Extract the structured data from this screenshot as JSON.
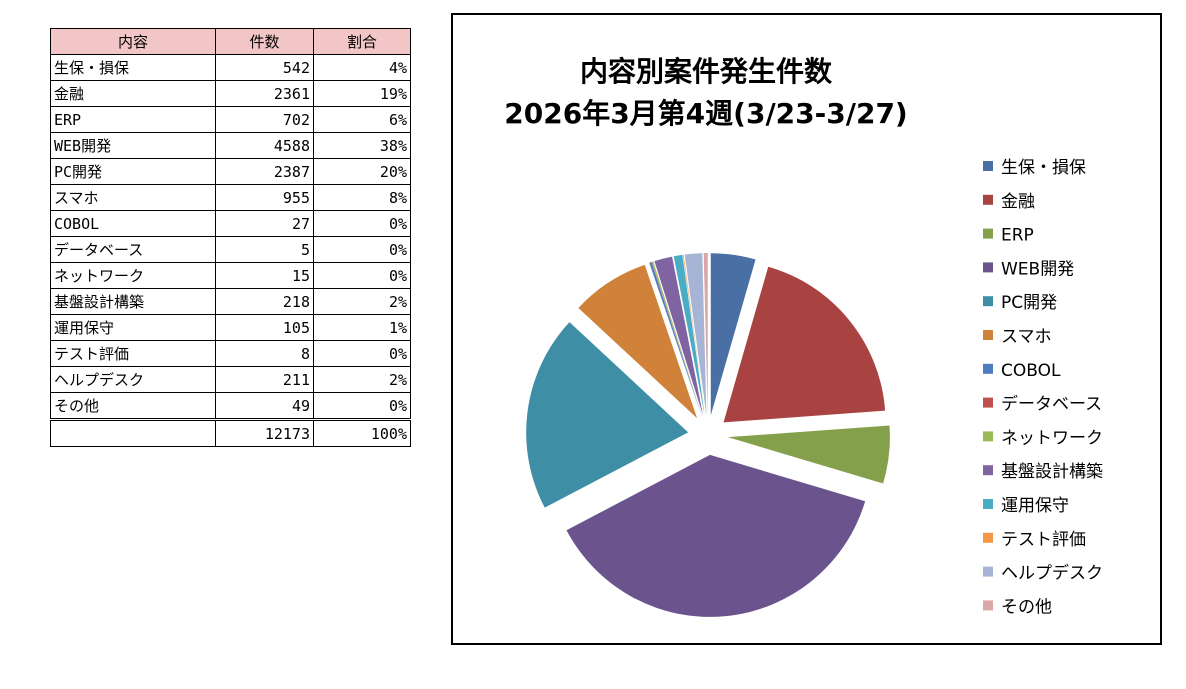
{
  "table": {
    "headers": [
      "内容",
      "件数",
      "割合"
    ],
    "rows": [
      {
        "name": "生保・損保",
        "count": "542",
        "pct": "4%"
      },
      {
        "name": "金融",
        "count": "2361",
        "pct": "19%"
      },
      {
        "name": "ERP",
        "count": "702",
        "pct": "6%"
      },
      {
        "name": "WEB開発",
        "count": "4588",
        "pct": "38%"
      },
      {
        "name": "PC開発",
        "count": "2387",
        "pct": "20%"
      },
      {
        "name": "スマホ",
        "count": "955",
        "pct": "8%"
      },
      {
        "name": "COBOL",
        "count": "27",
        "pct": "0%"
      },
      {
        "name": "データベース",
        "count": "5",
        "pct": "0%"
      },
      {
        "name": "ネットワーク",
        "count": "15",
        "pct": "0%"
      },
      {
        "name": "基盤設計構築",
        "count": "218",
        "pct": "2%"
      },
      {
        "name": "運用保守",
        "count": "105",
        "pct": "1%"
      },
      {
        "name": "テスト評価",
        "count": "8",
        "pct": "0%"
      },
      {
        "name": "ヘルプデスク",
        "count": "211",
        "pct": "2%"
      },
      {
        "name": "その他",
        "count": "49",
        "pct": "0%"
      }
    ],
    "total": {
      "name": "",
      "count": "12173",
      "pct": "100%"
    }
  },
  "chart_data": {
    "type": "pie",
    "title": "内容別案件発生件数",
    "subtitle": "2026年3月第4週(3/23-3/27)",
    "labels": [
      "生保・損保",
      "金融",
      "ERP",
      "WEB開発",
      "PC開発",
      "スマホ",
      "COBOL",
      "データベース",
      "ネットワーク",
      "基盤設計構築",
      "運用保守",
      "テスト評価",
      "ヘルプデスク",
      "その他"
    ],
    "values": [
      542,
      2361,
      702,
      4588,
      2387,
      955,
      27,
      5,
      15,
      218,
      105,
      8,
      211,
      49
    ],
    "colors": [
      "#4a6fa5",
      "#a94341",
      "#85a04b",
      "#6b548e",
      "#3e8ea6",
      "#d0813a",
      "#4d7cbf",
      "#c0504d",
      "#9bbb59",
      "#8064a2",
      "#4bacc6",
      "#f79646",
      "#a6b5d6",
      "#dba6a6"
    ],
    "legend_position": "right",
    "exploded": true
  }
}
